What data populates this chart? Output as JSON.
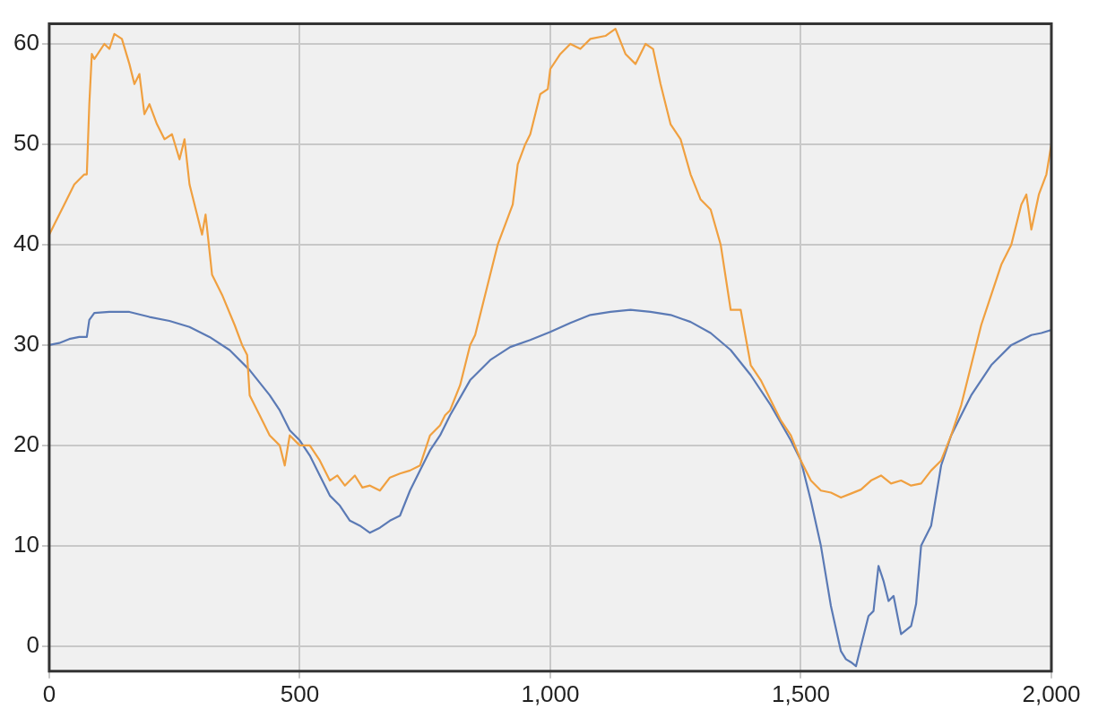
{
  "chart_data": {
    "type": "line",
    "xlim": [
      0,
      2000
    ],
    "ylim": [
      -2.5,
      62
    ],
    "xticks": [
      0,
      500,
      {
        "value": 1000,
        "label": "1,000"
      },
      {
        "value": 1500,
        "label": "1,500"
      },
      {
        "value": 2000,
        "label": "2,000"
      }
    ],
    "yticks": [
      0,
      10,
      20,
      30,
      40,
      50,
      60
    ],
    "grid": true,
    "legend": false,
    "marker": "none",
    "line_style": "solid",
    "series": [
      {
        "color": "#f0a040",
        "x": [
          0,
          10,
          30,
          50,
          70,
          75,
          80,
          85,
          90,
          110,
          120,
          130,
          145,
          160,
          170,
          180,
          190,
          200,
          215,
          230,
          245,
          260,
          270,
          280,
          295,
          305,
          312,
          325,
          345,
          370,
          385,
          395,
          400,
          420,
          440,
          460,
          470,
          480,
          500,
          520,
          540,
          560,
          575,
          590,
          610,
          625,
          640,
          660,
          680,
          700,
          720,
          740,
          760,
          780,
          790,
          800,
          820,
          840,
          850,
          860,
          880,
          895,
          910,
          925,
          935,
          950,
          960,
          980,
          995,
          1000,
          1020,
          1040,
          1060,
          1080,
          1110,
          1130,
          1150,
          1170,
          1190,
          1205,
          1220,
          1240,
          1260,
          1280,
          1300,
          1320,
          1340,
          1360,
          1380,
          1400,
          1420,
          1440,
          1460,
          1480,
          1500,
          1520,
          1540,
          1560,
          1580,
          1600,
          1620,
          1640,
          1660,
          1680,
          1700,
          1720,
          1740,
          1760,
          1780,
          1800,
          1820,
          1840,
          1860,
          1880,
          1900,
          1920,
          1940,
          1950,
          1960,
          1975,
          1990,
          2000
        ],
        "values": [
          41,
          42,
          44,
          46,
          47,
          47,
          54,
          59,
          58.5,
          60,
          59.5,
          61,
          60.5,
          58,
          56,
          57,
          53,
          54,
          52,
          50.5,
          51,
          48.5,
          50.5,
          46,
          43,
          41,
          43,
          37,
          35,
          32,
          30,
          29,
          25,
          23,
          21,
          20,
          18,
          21,
          20,
          20,
          18.5,
          16.5,
          17,
          16,
          17,
          15.8,
          16,
          15.5,
          16.8,
          17.2,
          17.5,
          18,
          21,
          22,
          23,
          23.5,
          26,
          30,
          31,
          33,
          37,
          40,
          42,
          44,
          48,
          50,
          51,
          55,
          55.5,
          57.5,
          59,
          60,
          59.5,
          60.5,
          60.8,
          61.5,
          59,
          58,
          60,
          59.5,
          56,
          52,
          50.5,
          47,
          44.5,
          43.5,
          40,
          33.5,
          33.5,
          28,
          26.5,
          24.5,
          22.5,
          21,
          18.5,
          16.5,
          15.5,
          15.3,
          14.8,
          15.2,
          15.6,
          16.5,
          17,
          16.2,
          16.5,
          16,
          16.2,
          17.5,
          18.5,
          21,
          24,
          28,
          32,
          35,
          38,
          40,
          44,
          45,
          41.5,
          45,
          47,
          50
        ]
      },
      {
        "color": "#5b7ab5",
        "x": [
          0,
          20,
          40,
          60,
          75,
          80,
          90,
          120,
          160,
          200,
          240,
          280,
          320,
          360,
          400,
          440,
          460,
          480,
          500,
          520,
          540,
          560,
          580,
          600,
          620,
          640,
          660,
          680,
          700,
          720,
          740,
          760,
          780,
          800,
          840,
          880,
          920,
          960,
          1000,
          1040,
          1080,
          1120,
          1160,
          1200,
          1240,
          1280,
          1320,
          1360,
          1400,
          1440,
          1480,
          1500,
          1520,
          1540,
          1560,
          1580,
          1590,
          1600,
          1610,
          1620,
          1635,
          1645,
          1655,
          1665,
          1675,
          1685,
          1700,
          1720,
          1730,
          1740,
          1760,
          1780,
          1800,
          1820,
          1840,
          1880,
          1920,
          1960,
          1980,
          2000
        ],
        "values": [
          30,
          30.2,
          30.6,
          30.8,
          30.8,
          32.5,
          33.2,
          33.3,
          33.3,
          32.8,
          32.4,
          31.8,
          30.8,
          29.5,
          27.5,
          25,
          23.5,
          21.5,
          20.5,
          19,
          17,
          15,
          14,
          12.5,
          12,
          11.3,
          11.8,
          12.5,
          13,
          15.5,
          17.5,
          19.5,
          21,
          23,
          26.5,
          28.5,
          29.8,
          30.5,
          31.3,
          32.2,
          33,
          33.3,
          33.5,
          33.3,
          33,
          32.3,
          31.2,
          29.5,
          27,
          24,
          20.5,
          18.5,
          14.5,
          10,
          4,
          -0.5,
          -1.3,
          -1.6,
          -2,
          0,
          3,
          3.5,
          8,
          6.5,
          4.5,
          5,
          1.2,
          2,
          4.2,
          10,
          12,
          18,
          21,
          23,
          25,
          28,
          30,
          31,
          31.2,
          31.5
        ]
      }
    ]
  }
}
